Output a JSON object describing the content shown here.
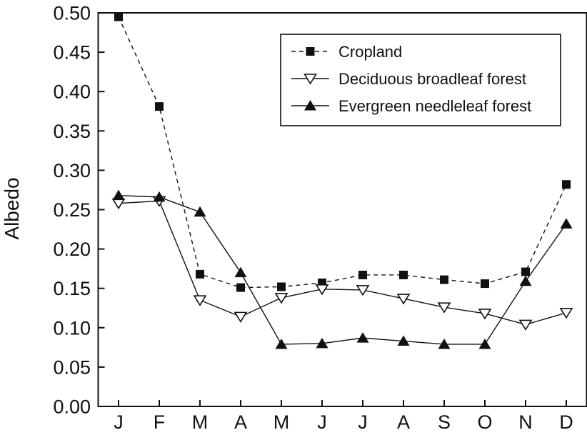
{
  "chart_data": {
    "type": "line",
    "ylabel": "Albedo",
    "xlabel": "",
    "categories": [
      "J",
      "F",
      "M",
      "A",
      "M",
      "J",
      "J",
      "A",
      "S",
      "O",
      "N",
      "D"
    ],
    "ylim": [
      0.0,
      0.5
    ],
    "yticks": [
      "0.00",
      "0.05",
      "0.10",
      "0.15",
      "0.20",
      "0.25",
      "0.30",
      "0.35",
      "0.40",
      "0.45",
      "0.50"
    ],
    "grid": false,
    "legend_position": "top-right",
    "series": [
      {
        "name": "Cropland",
        "marker": "square-filled",
        "line": "dashed",
        "values": [
          0.495,
          0.381,
          0.168,
          0.151,
          0.152,
          0.157,
          0.167,
          0.167,
          0.161,
          0.156,
          0.171,
          0.282
        ]
      },
      {
        "name": "Deciduous broadleaf forest",
        "marker": "triangle-down-open",
        "line": "solid",
        "values": [
          0.258,
          0.261,
          0.135,
          0.114,
          0.138,
          0.149,
          0.148,
          0.137,
          0.126,
          0.118,
          0.104,
          0.119
        ]
      },
      {
        "name": "Evergreen needleleaf forest",
        "marker": "triangle-up-filled",
        "line": "solid",
        "values": [
          0.268,
          0.266,
          0.247,
          0.17,
          0.079,
          0.08,
          0.087,
          0.083,
          0.079,
          0.079,
          0.159,
          0.232
        ]
      }
    ]
  }
}
